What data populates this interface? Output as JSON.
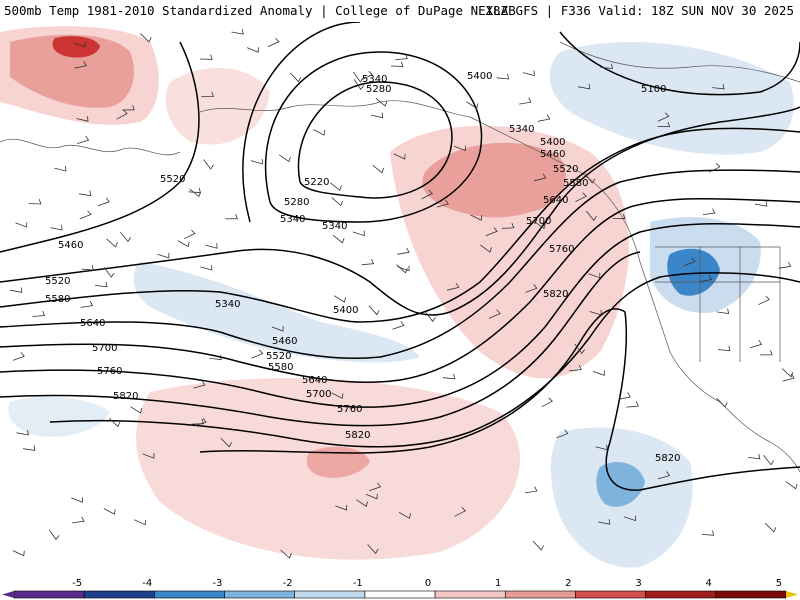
{
  "header": {
    "left_title": "500mb Temp 1981-2010 Standardized Anomaly | College of DuPage NEXLAB",
    "right_title": "18Z GFS | F336 Valid: 18Z SUN NOV 30 2025"
  },
  "contour_labels": [
    "5100",
    "5220",
    "5280",
    "5280",
    "5340",
    "5340",
    "5340",
    "5340",
    "5340",
    "5400",
    "5400",
    "5400",
    "5460",
    "5460",
    "5460",
    "5520",
    "5520",
    "5520",
    "5520",
    "5580",
    "5580",
    "5580",
    "5640",
    "5640",
    "5640",
    "5700",
    "5700",
    "5700",
    "5760",
    "5760",
    "5760",
    "5820",
    "5820",
    "5820",
    "5820"
  ],
  "colorbar": {
    "tick_labels": [
      "-5",
      "-4",
      "-3",
      "-2",
      "-1",
      "0",
      "1",
      "2",
      "3",
      "4",
      "5"
    ],
    "colors": [
      "#5a2a8c",
      "#1f3f8f",
      "#3b86c8",
      "#7eb3dd",
      "#c2d9ee",
      "#ffffff",
      "#f3c7c4",
      "#e59a95",
      "#d2514f",
      "#a01d1d",
      "#7a0a0a"
    ]
  },
  "legend_colors": {
    "strong_cold": "#3b86c8",
    "cold": "#7eb3dd",
    "weak_cold": "#c9ddef",
    "weak_warm": "#f7d4d2",
    "warm": "#e9a09b",
    "strong_warm": "#cc3333"
  }
}
